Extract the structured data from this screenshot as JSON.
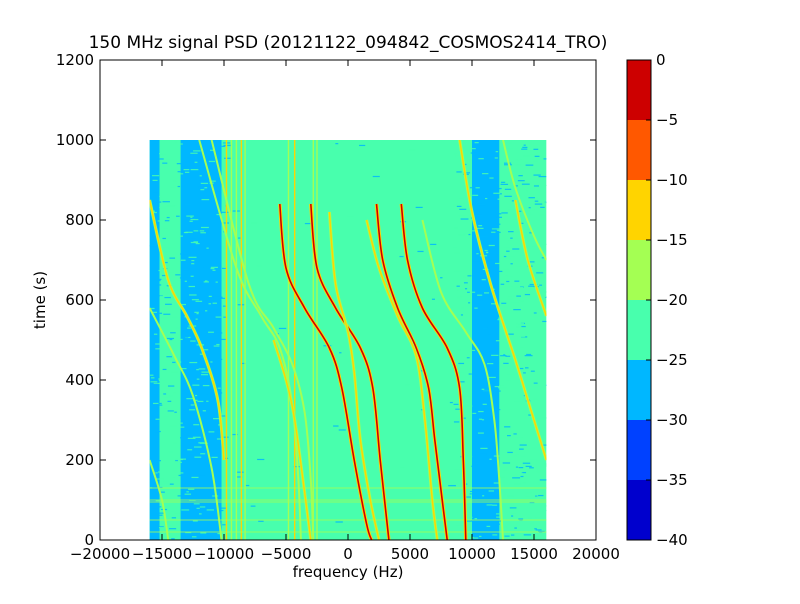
{
  "chart_data": {
    "type": "heatmap",
    "title": "150 MHz signal PSD (20121122_094842_COSMOS2414_TRO)",
    "xlabel": "frequency (Hz)",
    "ylabel": "time (s)",
    "xlim": [
      -20000,
      20000
    ],
    "ylim": [
      0,
      1200
    ],
    "xticks": [
      -20000,
      -15000,
      -10000,
      -5000,
      0,
      5000,
      10000,
      15000,
      20000
    ],
    "xtick_labels": [
      "−20000",
      "−15000",
      "−10000",
      "−5000",
      "0",
      "5000",
      "10000",
      "15000",
      "20000"
    ],
    "yticks": [
      0,
      200,
      400,
      600,
      800,
      1000,
      1200
    ],
    "ytick_labels": [
      "0",
      "200",
      "400",
      "600",
      "800",
      "1000",
      "1200"
    ],
    "data_extent": {
      "x": [
        -16000,
        16000
      ],
      "y": [
        0,
        1000
      ]
    },
    "colorbar": {
      "levels": [
        -40,
        -35,
        -30,
        -25,
        -20,
        -15,
        -10,
        -5,
        0
      ],
      "tick_labels": [
        "−40",
        "−35",
        "−30",
        "−25",
        "−20",
        "−15",
        "−10",
        "−5",
        "0"
      ],
      "colors": [
        "#0000cd",
        "#0041ff",
        "#00b7ff",
        "#48ffad",
        "#a4ff53",
        "#ffd400",
        "#ff5800",
        "#cd0000"
      ]
    },
    "background_level_color": "#48ffad",
    "noise_floor_color": "#00b7ff",
    "weak_line_color": "#a4ff53",
    "strong_line_color": "#ffd400",
    "peak_line_color": "#cd0000",
    "constant_lines_hz": [
      -9800,
      -9400,
      -9000,
      -8600,
      -8300,
      -4800,
      -4300,
      -2800,
      -2500
    ],
    "constant_time_lines_s": [
      20,
      50,
      95,
      100,
      130
    ],
    "sweeping_tracks": [
      {
        "points": [
          [
            -16000,
            850
          ],
          [
            -14500,
            650
          ],
          [
            -13000,
            560
          ],
          [
            -11800,
            480
          ],
          [
            -10500,
            350
          ],
          [
            -10000,
            200
          ]
        ],
        "strength": "strong"
      },
      {
        "points": [
          [
            -16000,
            580
          ],
          [
            -14000,
            460
          ],
          [
            -12500,
            360
          ],
          [
            -11000,
            180
          ],
          [
            -10200,
            0
          ]
        ],
        "strength": "weak"
      },
      {
        "points": [
          [
            -16000,
            200
          ],
          [
            -15000,
            100
          ],
          [
            -14500,
            0
          ]
        ],
        "strength": "weak"
      },
      {
        "points": [
          [
            -12000,
            1000
          ],
          [
            -9000,
            680
          ],
          [
            -7000,
            560
          ],
          [
            -5500,
            480
          ],
          [
            -4500,
            340
          ],
          [
            -4000,
            150
          ],
          [
            -3800,
            0
          ]
        ],
        "strength": "weak"
      },
      {
        "points": [
          [
            -11000,
            1000
          ],
          [
            -8000,
            640
          ],
          [
            -6000,
            530
          ],
          [
            -4500,
            440
          ],
          [
            -3500,
            320
          ],
          [
            -3000,
            150
          ],
          [
            -2800,
            0
          ]
        ],
        "strength": "weak"
      },
      {
        "points": [
          [
            -6000,
            500
          ],
          [
            -5000,
            400
          ],
          [
            -4300,
            300
          ],
          [
            -3500,
            120
          ],
          [
            -3000,
            0
          ]
        ],
        "strength": "strong"
      },
      {
        "points": [
          [
            -5500,
            840
          ],
          [
            -5000,
            680
          ],
          [
            -3500,
            580
          ],
          [
            -1500,
            480
          ],
          [
            -500,
            380
          ],
          [
            500,
            200
          ],
          [
            1500,
            40
          ],
          [
            1900,
            0
          ]
        ],
        "strength": "peak"
      },
      {
        "points": [
          [
            -3000,
            840
          ],
          [
            -2500,
            680
          ],
          [
            -1000,
            580
          ],
          [
            1000,
            480
          ],
          [
            2000,
            380
          ],
          [
            2600,
            200
          ],
          [
            3300,
            0
          ]
        ],
        "strength": "peak"
      },
      {
        "points": [
          [
            -1500,
            820
          ],
          [
            -1000,
            640
          ],
          [
            0,
            520
          ],
          [
            500,
            420
          ],
          [
            1000,
            250
          ],
          [
            1800,
            100
          ],
          [
            2500,
            0
          ]
        ],
        "strength": "strong"
      },
      {
        "points": [
          [
            2300,
            840
          ],
          [
            2800,
            700
          ],
          [
            4000,
            580
          ],
          [
            5500,
            480
          ],
          [
            6500,
            380
          ],
          [
            7000,
            250
          ],
          [
            7600,
            100
          ],
          [
            8000,
            0
          ]
        ],
        "strength": "peak"
      },
      {
        "points": [
          [
            4300,
            840
          ],
          [
            4800,
            700
          ],
          [
            6000,
            580
          ],
          [
            8000,
            480
          ],
          [
            9000,
            380
          ],
          [
            9300,
            200
          ],
          [
            9500,
            0
          ]
        ],
        "strength": "peak"
      },
      {
        "points": [
          [
            1500,
            800
          ],
          [
            2500,
            680
          ],
          [
            4000,
            560
          ],
          [
            5500,
            460
          ],
          [
            6200,
            300
          ],
          [
            6800,
            100
          ],
          [
            7200,
            0
          ]
        ],
        "strength": "strong"
      },
      {
        "points": [
          [
            6000,
            800
          ],
          [
            7500,
            620
          ],
          [
            9500,
            520
          ],
          [
            11000,
            440
          ],
          [
            11800,
            300
          ],
          [
            12200,
            150
          ],
          [
            12500,
            0
          ]
        ],
        "strength": "weak"
      },
      {
        "points": [
          [
            9000,
            1000
          ],
          [
            10000,
            820
          ],
          [
            11500,
            640
          ],
          [
            13500,
            450
          ],
          [
            14500,
            350
          ],
          [
            15500,
            250
          ],
          [
            16000,
            200
          ]
        ],
        "strength": "strong"
      },
      {
        "points": [
          [
            13500,
            850
          ],
          [
            14500,
            700
          ],
          [
            16000,
            560
          ]
        ],
        "strength": "strong"
      },
      {
        "points": [
          [
            12500,
            1000
          ],
          [
            13500,
            880
          ],
          [
            15000,
            760
          ],
          [
            16000,
            700
          ]
        ],
        "strength": "weak"
      }
    ]
  }
}
